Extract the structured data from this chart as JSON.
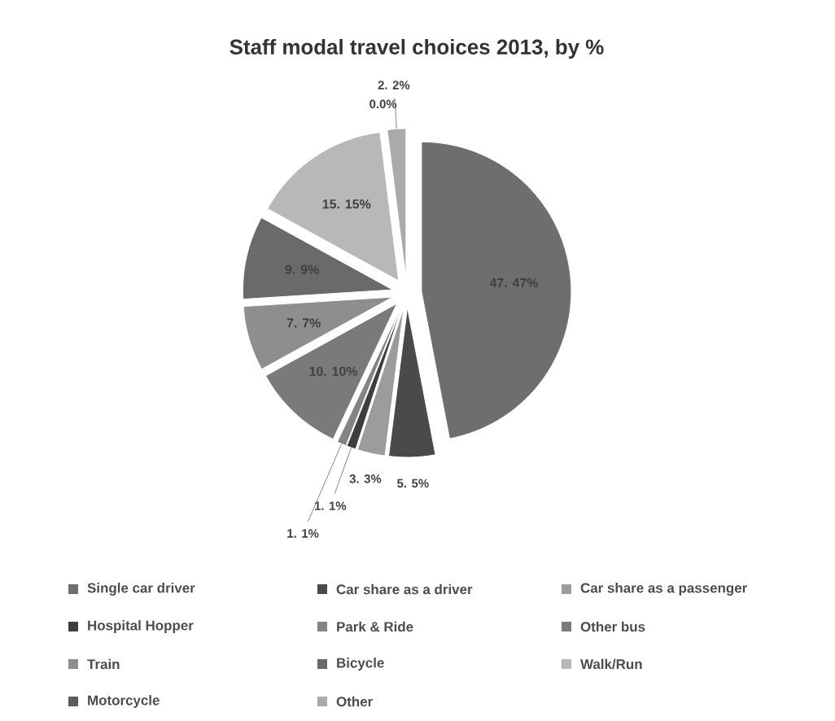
{
  "chart_data": {
    "type": "pie",
    "title": "Staff modal travel choices 2013, by %",
    "categories": [
      "Single car driver",
      "Car share as a driver",
      "Car share as a passenger",
      "Hospital Hopper",
      "Park & Ride",
      "Other bus",
      "Train",
      "Bicycle",
      "Walk/Run",
      "Motorcycle",
      "Other"
    ],
    "values": [
      47,
      5,
      3,
      1,
      1,
      10,
      7,
      9,
      15,
      0,
      2
    ],
    "value_labels": [
      "47. 47%",
      "5. 5%",
      "3. 3%",
      "1. 1%",
      "1. 1%",
      "10. 10%",
      "7. 7%",
      "9. 9%",
      "15. 15%",
      "0.0%",
      "2. 2%"
    ],
    "colors": [
      "#6e6e6e",
      "#4a4a4a",
      "#9c9c9c",
      "#3e3e3e",
      "#848484",
      "#7a7a7a",
      "#8e8e8e",
      "#6a6a6a",
      "#b8b8b8",
      "#5c5c5c",
      "#aaaaaa"
    ],
    "legend": "bottom"
  }
}
